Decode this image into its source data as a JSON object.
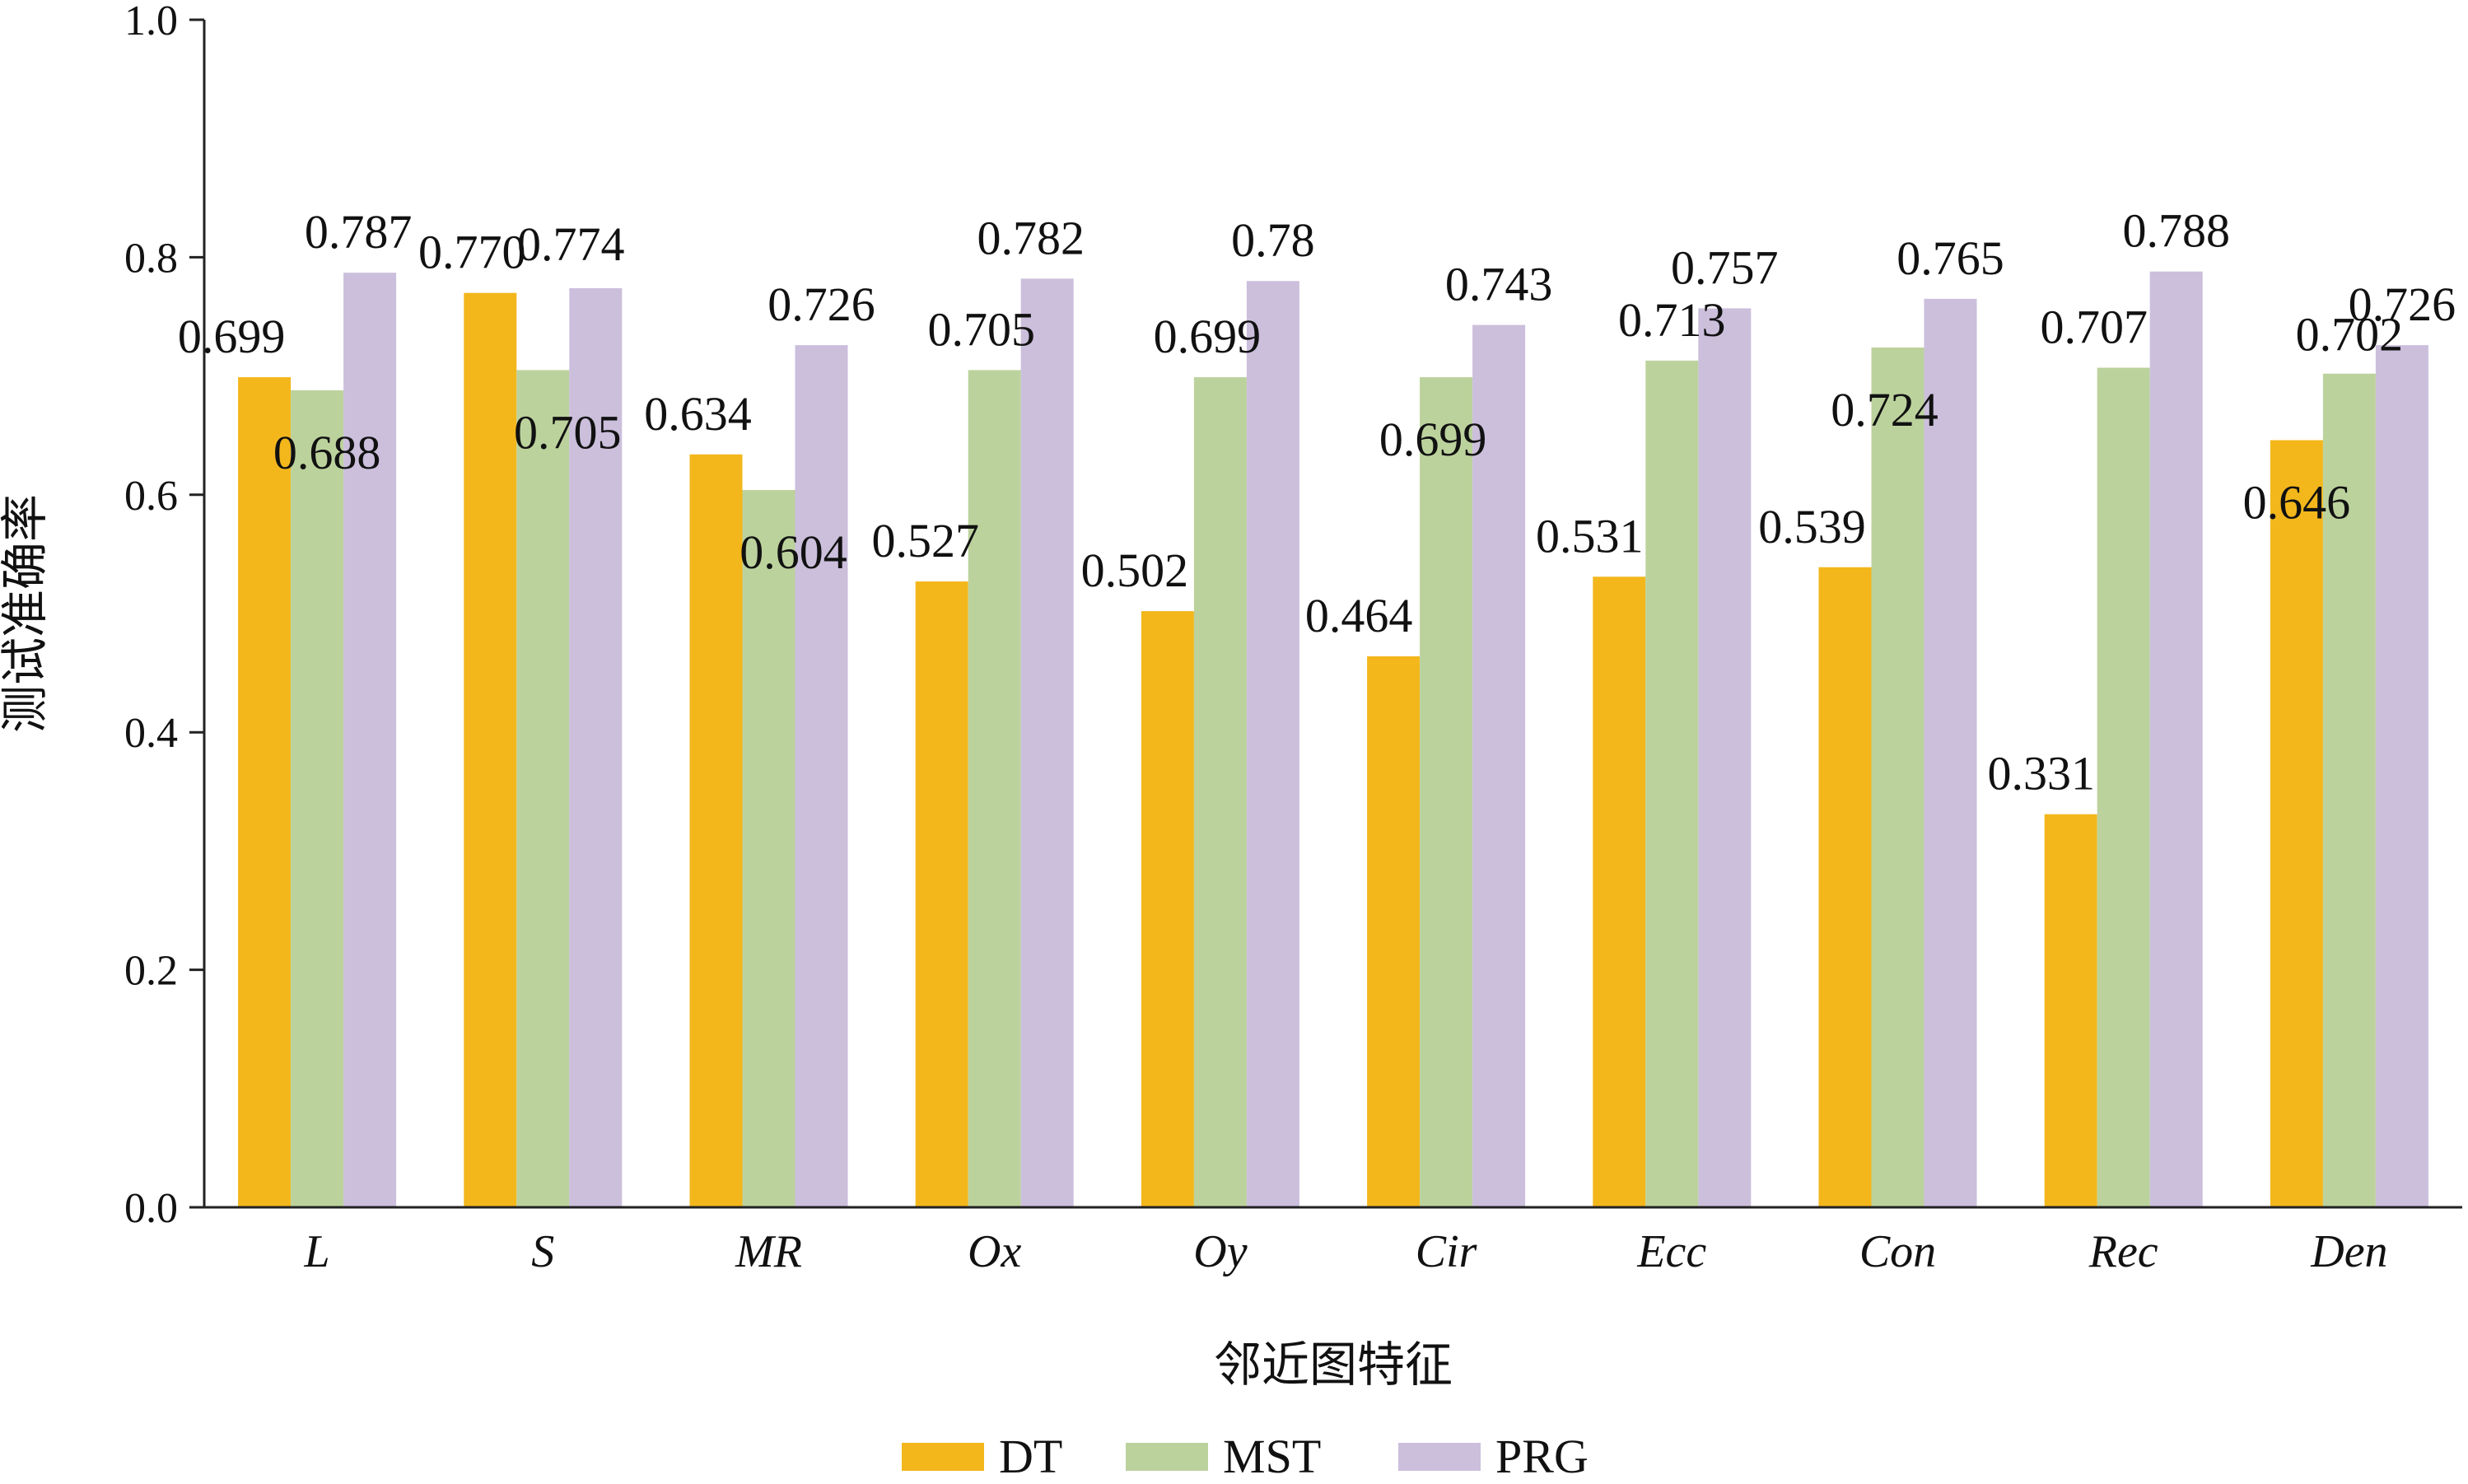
{
  "chart_data": {
    "type": "bar",
    "title": "",
    "xlabel": "邻近图特征",
    "ylabel": "测试准确率",
    "ylim": [
      0,
      1.0
    ],
    "yticks": [
      "0.0",
      "0.2",
      "0.4",
      "0.6",
      "0.8",
      "1.0"
    ],
    "ytick_values": [
      0,
      0.2,
      0.4,
      0.6,
      0.8,
      1.0
    ],
    "categories": [
      "L",
      "S",
      "MR",
      "Ox",
      "Oy",
      "Cir",
      "Ecc",
      "Con",
      "Rec",
      "Den"
    ],
    "series": [
      {
        "name": "DT",
        "color": "#f3b71c",
        "values": [
          0.699,
          0.77,
          0.634,
          0.527,
          0.502,
          0.464,
          0.531,
          0.539,
          0.331,
          0.646
        ],
        "labels": [
          "0.699",
          "0.770",
          "0.634",
          "0.527",
          "0.502",
          "0.464",
          "0.531",
          "0.539",
          "0.331",
          "0.646"
        ]
      },
      {
        "name": "MST",
        "color": "#bcd29d",
        "values": [
          0.688,
          0.705,
          0.604,
          0.705,
          0.699,
          0.699,
          0.713,
          0.724,
          0.707,
          0.702
        ],
        "labels": [
          "0.688",
          "0.705",
          "0.604",
          "0.705",
          "0.699",
          "0.699",
          "0.713",
          "0.724",
          "0.707",
          "0.702"
        ]
      },
      {
        "name": "PRG",
        "color": "#cbbfdc",
        "values": [
          0.787,
          0.774,
          0.726,
          0.782,
          0.78,
          0.743,
          0.757,
          0.765,
          0.788,
          0.726
        ],
        "labels": [
          "0.787",
          "0.774",
          "0.726",
          "0.782",
          "0.78",
          "0.743",
          "0.757",
          "0.765",
          "0.788",
          "0.726"
        ]
      }
    ],
    "grid": false,
    "legend": "bottom-center"
  }
}
